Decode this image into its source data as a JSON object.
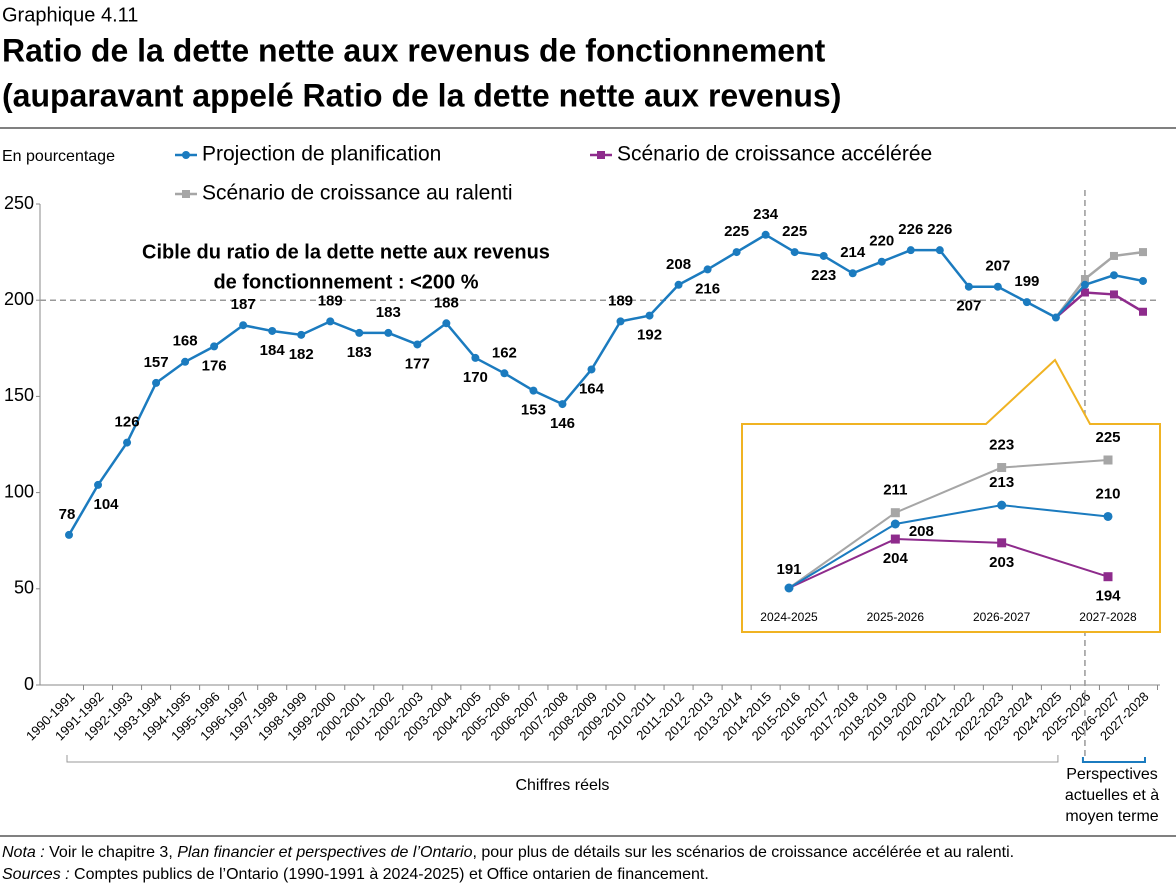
{
  "chart_data": {
    "type": "line",
    "label": "Graphique 4.11",
    "title_lines": [
      "Ratio de la dette nette aux revenus de fonctionnement",
      "(auparavant appelé Ratio de la dette nette aux revenus)"
    ],
    "y_label": "En pourcentage",
    "categories": [
      "1990-1991",
      "1991-1992",
      "1992-1993",
      "1993-1994",
      "1994-1995",
      "1995-1996",
      "1996-1997",
      "1997-1998",
      "1998-1999",
      "1999-2000",
      "2000-2001",
      "2001-2002",
      "2002-2003",
      "2003-2004",
      "2004-2005",
      "2005-2006",
      "2006-2007",
      "2007-2008",
      "2008-2009",
      "2009-2010",
      "2010-2011",
      "2011-2012",
      "2012-2013",
      "2013-2014",
      "2014-2015",
      "2015-2016",
      "2016-2017",
      "2017-2018",
      "2018-2019",
      "2019-2020",
      "2020-2021",
      "2021-2022",
      "2022-2023",
      "2023-2024",
      "2024-2025",
      "2025-2026",
      "2026-2027",
      "2027-2028"
    ],
    "series": [
      {
        "name": "Projection de planification",
        "color": "#1b7bbf",
        "marker": "circle",
        "values": [
          78,
          104,
          126,
          157,
          168,
          176,
          187,
          184,
          182,
          189,
          183,
          183,
          177,
          188,
          170,
          162,
          153,
          146,
          164,
          189,
          192,
          208,
          216,
          225,
          234,
          225,
          223,
          214,
          220,
          226,
          226,
          207,
          207,
          199,
          191,
          208,
          213,
          210
        ]
      },
      {
        "name": "Scénario de croissance accélérée",
        "color": "#8e2b8c",
        "marker": "square",
        "values": [
          null,
          null,
          null,
          null,
          null,
          null,
          null,
          null,
          null,
          null,
          null,
          null,
          null,
          null,
          null,
          null,
          null,
          null,
          null,
          null,
          null,
          null,
          null,
          null,
          null,
          null,
          null,
          null,
          null,
          null,
          null,
          null,
          null,
          null,
          191,
          204,
          203,
          194
        ]
      },
      {
        "name": "Scénario de croissance au ralenti",
        "color": "#a6a6a6",
        "marker": "square",
        "values": [
          null,
          null,
          null,
          null,
          null,
          null,
          null,
          null,
          null,
          null,
          null,
          null,
          null,
          null,
          null,
          null,
          null,
          null,
          null,
          null,
          null,
          null,
          null,
          null,
          null,
          null,
          null,
          null,
          null,
          null,
          null,
          null,
          null,
          null,
          191,
          211,
          223,
          225
        ]
      }
    ],
    "ylim": [
      0,
      250
    ],
    "yticks": [
      0,
      50,
      100,
      150,
      200,
      250
    ],
    "target": 200,
    "target_label_lines": [
      "Cible du ratio de la dette nette aux revenus",
      "de fonctionnement : <200 %"
    ],
    "groups": [
      {
        "label_lines": [
          "Chiffres réels"
        ],
        "from": "1990-1991",
        "to": "2024-2025"
      },
      {
        "label_lines": [
          "Perspectives",
          "actuelles et à",
          "moyen terme"
        ],
        "from": "2025-2026",
        "to": "2027-2028"
      }
    ],
    "inset_from": "2024-2025",
    "note_label": "Nota :",
    "note_text_1": " Voir le chapitre 3, ",
    "note_italic": "Plan financier et perspectives de l’Ontario",
    "note_text_2": ", pour plus de détails sur les scénarios de croissance accélérée et au ralenti.",
    "sources_label": "Sources :",
    "sources_text": " Comptes publics de l’Ontario (1990-1991 à 2024-2025) et Office ontarien de financement."
  }
}
